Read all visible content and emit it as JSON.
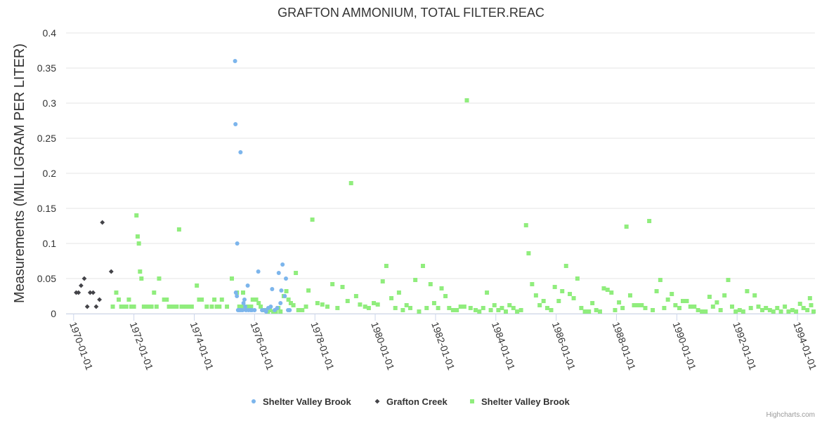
{
  "chart_data": {
    "type": "scatter",
    "title": "GRAFTON AMMONIUM, TOTAL FILTER.REAC",
    "xlabel": "",
    "ylabel": "Measurements (MILLIGRAM PER LITER)",
    "ylim": [
      0,
      0.4
    ],
    "yticks": [
      "0",
      "0.05",
      "0.1",
      "0.15",
      "0.2",
      "0.25",
      "0.3",
      "0.35",
      "0.4"
    ],
    "xlim": [
      "1969-10-01",
      "1994-08-01"
    ],
    "xticks": [
      "1970-01-01",
      "1972-01-01",
      "1974-01-01",
      "1976-01-01",
      "1978-01-01",
      "1980-01-01",
      "1982-01-01",
      "1984-01-01",
      "1986-01-01",
      "1988-01-01",
      "1990-01-01",
      "1992-01-01",
      "1994-01-01"
    ],
    "grid": true,
    "legend_position": "bottom",
    "credits": "Highcharts.com",
    "series": [
      {
        "name": "Shelter Valley Brook",
        "marker": "circle",
        "color": "#7cb5ec",
        "points": [
          [
            "1975-05-10",
            0.36
          ],
          [
            "1975-05-15",
            0.27
          ],
          [
            "1975-07-15",
            0.23
          ],
          [
            "1975-06-05",
            0.1
          ],
          [
            "1975-05-20",
            0.03
          ],
          [
            "1975-06-01",
            0.025
          ],
          [
            "1975-06-15",
            0.005
          ],
          [
            "1975-07-01",
            0.005
          ],
          [
            "1975-07-20",
            0.005
          ],
          [
            "1975-08-10",
            0.005
          ],
          [
            "1975-08-20",
            0.015
          ],
          [
            "1975-09-01",
            0.02
          ],
          [
            "1975-09-10",
            0.01
          ],
          [
            "1975-09-20",
            0.005
          ],
          [
            "1975-10-10",
            0.04
          ],
          [
            "1975-10-20",
            0.005
          ],
          [
            "1975-11-15",
            0.005
          ],
          [
            "1975-12-01",
            0.005
          ],
          [
            "1976-01-01",
            0.005
          ],
          [
            "1976-02-15",
            0.06
          ],
          [
            "1976-04-01",
            0.005
          ],
          [
            "1976-05-01",
            0.005
          ],
          [
            "1976-05-20",
            0.003
          ],
          [
            "1976-06-15",
            0.008
          ],
          [
            "1976-07-15",
            0.01
          ],
          [
            "1976-08-01",
            0.035
          ],
          [
            "1976-09-01",
            0.005
          ],
          [
            "1976-10-01",
            0.008
          ],
          [
            "1976-10-20",
            0.058
          ],
          [
            "1976-11-10",
            0.015
          ],
          [
            "1976-11-20",
            0.033
          ],
          [
            "1976-12-05",
            0.07
          ],
          [
            "1977-01-01",
            0.025
          ],
          [
            "1977-01-15",
            0.05
          ],
          [
            "1977-02-10",
            0.005
          ],
          [
            "1977-03-01",
            0.005
          ]
        ]
      },
      {
        "name": "Grafton Creek",
        "marker": "diamond",
        "color": "#434348",
        "points": [
          [
            "1970-02-01",
            0.03
          ],
          [
            "1970-03-01",
            0.03
          ],
          [
            "1970-04-01",
            0.04
          ],
          [
            "1970-05-10",
            0.05
          ],
          [
            "1970-06-15",
            0.01
          ],
          [
            "1970-07-20",
            0.03
          ],
          [
            "1970-08-25",
            0.03
          ],
          [
            "1970-10-01",
            0.01
          ],
          [
            "1970-11-10",
            0.02
          ],
          [
            "1970-12-15",
            0.13
          ],
          [
            "1971-04-01",
            0.06
          ]
        ]
      },
      {
        "name": "Shelter Valley Brook",
        "marker": "square",
        "color": "#90ed7d",
        "points": [
          [
            "1971-04-20",
            0.01
          ],
          [
            "1971-06-01",
            0.03
          ],
          [
            "1971-07-01",
            0.02
          ],
          [
            "1971-08-01",
            0.01
          ],
          [
            "1971-09-01",
            0.01
          ],
          [
            "1971-10-01",
            0.01
          ],
          [
            "1971-11-01",
            0.02
          ],
          [
            "1971-12-01",
            0.01
          ],
          [
            "1972-01-01",
            0.01
          ],
          [
            "1972-02-01",
            0.14
          ],
          [
            "1972-02-15",
            0.11
          ],
          [
            "1972-03-01",
            0.1
          ],
          [
            "1972-03-15",
            0.06
          ],
          [
            "1972-04-01",
            0.05
          ],
          [
            "1972-05-01",
            0.01
          ],
          [
            "1972-06-01",
            0.01
          ],
          [
            "1972-07-01",
            0.01
          ],
          [
            "1972-08-01",
            0.01
          ],
          [
            "1972-09-01",
            0.03
          ],
          [
            "1972-10-01",
            0.01
          ],
          [
            "1972-11-01",
            0.05
          ],
          [
            "1973-01-01",
            0.02
          ],
          [
            "1973-02-01",
            0.02
          ],
          [
            "1973-03-01",
            0.01
          ],
          [
            "1973-04-01",
            0.01
          ],
          [
            "1973-05-01",
            0.01
          ],
          [
            "1973-06-01",
            0.01
          ],
          [
            "1973-07-01",
            0.12
          ],
          [
            "1973-08-01",
            0.01
          ],
          [
            "1973-09-01",
            0.01
          ],
          [
            "1973-10-01",
            0.01
          ],
          [
            "1973-11-01",
            0.01
          ],
          [
            "1973-12-01",
            0.01
          ],
          [
            "1974-02-01",
            0.04
          ],
          [
            "1974-03-01",
            0.02
          ],
          [
            "1974-04-01",
            0.02
          ],
          [
            "1974-06-01",
            0.01
          ],
          [
            "1974-08-01",
            0.01
          ],
          [
            "1974-09-01",
            0.02
          ],
          [
            "1974-10-01",
            0.01
          ],
          [
            "1974-11-01",
            0.01
          ],
          [
            "1974-12-01",
            0.02
          ],
          [
            "1975-02-01",
            0.01
          ],
          [
            "1975-04-01",
            0.05
          ],
          [
            "1975-06-01",
            0.03
          ],
          [
            "1975-07-01",
            0.01
          ],
          [
            "1975-07-20",
            0.01
          ],
          [
            "1975-08-15",
            0.03
          ],
          [
            "1975-09-01",
            0.01
          ],
          [
            "1975-09-20",
            0.01
          ],
          [
            "1975-10-15",
            0.01
          ],
          [
            "1975-11-01",
            0.01
          ],
          [
            "1975-11-20",
            0.01
          ],
          [
            "1975-12-10",
            0.02
          ],
          [
            "1976-01-20",
            0.02
          ],
          [
            "1976-02-20",
            0.015
          ],
          [
            "1976-03-15",
            0.01
          ],
          [
            "1976-04-20",
            0.005
          ],
          [
            "1976-05-10",
            0.005
          ],
          [
            "1976-06-10",
            0.003
          ],
          [
            "1976-07-05",
            0.005
          ],
          [
            "1976-08-15",
            0.003
          ],
          [
            "1976-09-15",
            0.003
          ],
          [
            "1976-10-15",
            0.008
          ],
          [
            "1976-11-10",
            0.003
          ],
          [
            "1976-12-20",
            0.025
          ],
          [
            "1977-01-20",
            0.032
          ],
          [
            "1977-02-15",
            0.02
          ],
          [
            "1977-03-15",
            0.015
          ],
          [
            "1977-04-15",
            0.012
          ],
          [
            "1977-05-15",
            0.058
          ],
          [
            "1977-06-15",
            0.005
          ],
          [
            "1977-08-01",
            0.005
          ],
          [
            "1977-09-15",
            0.01
          ],
          [
            "1977-10-15",
            0.033
          ],
          [
            "1977-12-01",
            0.134
          ],
          [
            "1978-02-01",
            0.015
          ],
          [
            "1978-04-01",
            0.013
          ],
          [
            "1978-06-01",
            0.01
          ],
          [
            "1978-08-01",
            0.042
          ],
          [
            "1978-10-01",
            0.008
          ],
          [
            "1978-12-01",
            0.038
          ],
          [
            "1979-02-01",
            0.018
          ],
          [
            "1979-03-15",
            0.186
          ],
          [
            "1979-05-15",
            0.025
          ],
          [
            "1979-07-01",
            0.013
          ],
          [
            "1979-09-01",
            0.01
          ],
          [
            "1979-10-15",
            0.008
          ],
          [
            "1979-12-15",
            0.015
          ],
          [
            "1980-02-01",
            0.013
          ],
          [
            "1980-04-01",
            0.046
          ],
          [
            "1980-05-15",
            0.068
          ],
          [
            "1980-07-15",
            0.022
          ],
          [
            "1980-09-01",
            0.008
          ],
          [
            "1980-10-15",
            0.03
          ],
          [
            "1980-12-01",
            0.005
          ],
          [
            "1981-01-15",
            0.012
          ],
          [
            "1981-03-01",
            0.008
          ],
          [
            "1981-05-01",
            0.048
          ],
          [
            "1981-06-15",
            0.003
          ],
          [
            "1981-08-01",
            0.068
          ],
          [
            "1981-09-15",
            0.008
          ],
          [
            "1981-11-01",
            0.042
          ],
          [
            "1981-12-15",
            0.015
          ],
          [
            "1982-02-01",
            0.008
          ],
          [
            "1982-03-15",
            0.036
          ],
          [
            "1982-05-01",
            0.025
          ],
          [
            "1982-06-15",
            0.008
          ],
          [
            "1982-08-01",
            0.005
          ],
          [
            "1982-09-15",
            0.005
          ],
          [
            "1982-11-01",
            0.01
          ],
          [
            "1982-12-15",
            0.01
          ],
          [
            "1983-01-15",
            0.304
          ],
          [
            "1983-03-01",
            0.008
          ],
          [
            "1983-05-01",
            0.005
          ],
          [
            "1983-06-15",
            0.003
          ],
          [
            "1983-08-01",
            0.008
          ],
          [
            "1983-09-15",
            0.03
          ],
          [
            "1983-11-01",
            0.005
          ],
          [
            "1983-12-15",
            0.012
          ],
          [
            "1984-02-01",
            0.005
          ],
          [
            "1984-03-15",
            0.008
          ],
          [
            "1984-05-01",
            0.003
          ],
          [
            "1984-06-15",
            0.012
          ],
          [
            "1984-08-01",
            0.008
          ],
          [
            "1984-09-15",
            0.003
          ],
          [
            "1984-11-01",
            0.005
          ],
          [
            "1985-01-01",
            0.126
          ],
          [
            "1985-02-01",
            0.086
          ],
          [
            "1985-03-15",
            0.042
          ],
          [
            "1985-05-01",
            0.026
          ],
          [
            "1985-06-15",
            0.012
          ],
          [
            "1985-08-01",
            0.018
          ],
          [
            "1985-09-15",
            0.008
          ],
          [
            "1985-11-01",
            0.005
          ],
          [
            "1985-12-15",
            0.038
          ],
          [
            "1986-02-01",
            0.018
          ],
          [
            "1986-03-15",
            0.032
          ],
          [
            "1986-05-01",
            0.068
          ],
          [
            "1986-06-15",
            0.028
          ],
          [
            "1986-08-01",
            0.022
          ],
          [
            "1986-09-15",
            0.05
          ],
          [
            "1986-11-01",
            0.008
          ],
          [
            "1986-12-15",
            0.003
          ],
          [
            "1987-02-01",
            0.003
          ],
          [
            "1987-03-15",
            0.015
          ],
          [
            "1987-05-01",
            0.005
          ],
          [
            "1987-06-15",
            0.003
          ],
          [
            "1987-08-01",
            0.036
          ],
          [
            "1987-09-15",
            0.034
          ],
          [
            "1987-11-01",
            0.03
          ],
          [
            "1987-12-15",
            0.005
          ],
          [
            "1988-02-01",
            0.016
          ],
          [
            "1988-03-15",
            0.008
          ],
          [
            "1988-05-01",
            0.124
          ],
          [
            "1988-06-15",
            0.026
          ],
          [
            "1988-08-01",
            0.012
          ],
          [
            "1988-09-15",
            0.012
          ],
          [
            "1988-11-01",
            0.012
          ],
          [
            "1988-12-15",
            0.008
          ],
          [
            "1989-02-01",
            0.132
          ],
          [
            "1989-03-15",
            0.005
          ],
          [
            "1989-05-01",
            0.032
          ],
          [
            "1989-06-15",
            0.048
          ],
          [
            "1989-08-01",
            0.008
          ],
          [
            "1989-09-15",
            0.02
          ],
          [
            "1989-11-01",
            0.028
          ],
          [
            "1989-12-15",
            0.012
          ],
          [
            "1990-02-01",
            0.008
          ],
          [
            "1990-03-15",
            0.018
          ],
          [
            "1990-05-01",
            0.018
          ],
          [
            "1990-06-15",
            0.01
          ],
          [
            "1990-08-01",
            0.01
          ],
          [
            "1990-09-15",
            0.005
          ],
          [
            "1990-11-01",
            0.003
          ],
          [
            "1990-12-15",
            0.003
          ],
          [
            "1991-02-01",
            0.024
          ],
          [
            "1991-03-15",
            0.01
          ],
          [
            "1991-05-01",
            0.016
          ],
          [
            "1991-06-15",
            0.005
          ],
          [
            "1991-08-01",
            0.026
          ],
          [
            "1991-09-15",
            0.048
          ],
          [
            "1991-11-01",
            0.01
          ],
          [
            "1991-12-15",
            0.003
          ],
          [
            "1992-02-01",
            0.005
          ],
          [
            "1992-03-15",
            0.003
          ],
          [
            "1992-05-01",
            0.032
          ],
          [
            "1992-06-15",
            0.008
          ],
          [
            "1992-08-01",
            0.026
          ],
          [
            "1992-09-15",
            0.01
          ],
          [
            "1992-11-01",
            0.005
          ],
          [
            "1992-12-15",
            0.008
          ],
          [
            "1993-02-01",
            0.005
          ],
          [
            "1993-03-15",
            0.003
          ],
          [
            "1993-05-01",
            0.008
          ],
          [
            "1993-06-15",
            0.003
          ],
          [
            "1993-08-01",
            0.01
          ],
          [
            "1993-09-15",
            0.003
          ],
          [
            "1993-11-01",
            0.005
          ],
          [
            "1993-12-15",
            0.003
          ],
          [
            "1994-02-01",
            0.014
          ],
          [
            "1994-03-15",
            0.008
          ],
          [
            "1994-05-01",
            0.005
          ],
          [
            "1994-06-15",
            0.012
          ],
          [
            "1994-07-15",
            0.003
          ],
          [
            "1994-06-01",
            0.022
          ]
        ]
      }
    ]
  }
}
